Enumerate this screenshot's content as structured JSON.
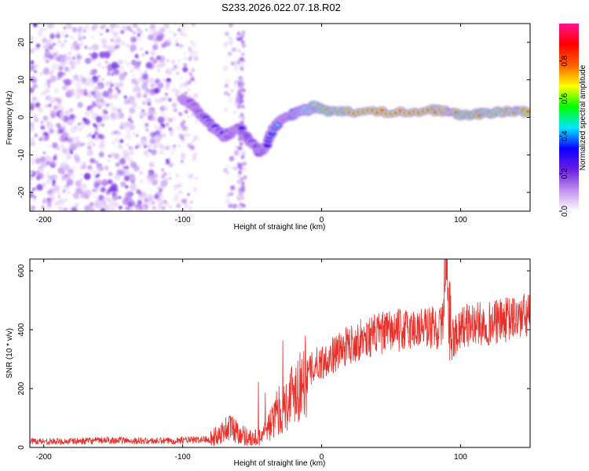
{
  "figure": {
    "title": "S233.2026.022.07.18.R02"
  },
  "chart_data": [
    {
      "type": "heatmap",
      "name": "spectrogram",
      "xlabel": "Height of straight line (km)",
      "ylabel": "Frequency (Hz)",
      "xlim": [
        -210,
        150
      ],
      "ylim": [
        -25,
        25
      ],
      "xticks": [
        -200,
        -100,
        0,
        100
      ],
      "yticks": [
        -20,
        -10,
        0,
        10,
        20
      ],
      "colorbar": {
        "label": "Normalized spectral amplitude",
        "range": [
          0,
          1
        ],
        "ticks": [
          0.0,
          0.2,
          0.4,
          0.6,
          0.8
        ],
        "tick_labels": [
          "0.0",
          "0.2",
          "0.4",
          "0.6",
          "0.8"
        ],
        "colors": [
          "#ffffff",
          "#c090f0",
          "#6a1de0",
          "#0b00ff",
          "#00e6ff",
          "#00ff00",
          "#ffff00",
          "#ff6000",
          "#ff0000",
          "#ff1090"
        ]
      },
      "ridge": {
        "x": [
          -100,
          -95,
          -90,
          -85,
          -80,
          -75,
          -70,
          -65,
          -60,
          -55,
          -50,
          -45,
          -40,
          -35,
          -30,
          -25,
          -20,
          -15,
          -10,
          -5,
          0,
          10,
          20,
          40,
          60,
          80,
          90,
          100,
          110,
          120,
          130,
          140,
          150
        ],
        "y": [
          5,
          4,
          2,
          0,
          -2,
          -3.5,
          -5,
          -4,
          -2,
          -5,
          -7,
          -9,
          -8,
          -3,
          -1,
          0,
          1,
          2,
          2,
          3,
          2,
          1.5,
          1.5,
          1.5,
          1.5,
          2,
          1.5,
          0.5,
          1,
          1,
          1.5,
          1.5,
          1.5
        ],
        "amplitude": [
          0.15,
          0.2,
          0.22,
          0.3,
          0.35,
          0.35,
          0.35,
          0.3,
          0.3,
          0.3,
          0.3,
          0.3,
          0.32,
          0.4,
          0.45,
          0.5,
          0.55,
          0.6,
          0.65,
          0.7,
          0.75,
          0.85,
          0.88,
          0.9,
          0.9,
          0.88,
          0.9,
          0.85,
          0.85,
          0.85,
          0.88,
          0.88,
          0.88
        ]
      }
    },
    {
      "type": "line",
      "name": "snr",
      "xlabel": "Height of straight line (km)",
      "ylabel": "SNR (10 * v/v)",
      "xlim": [
        -210,
        150
      ],
      "ylim": [
        0,
        640
      ],
      "xticks": [
        -200,
        -100,
        0,
        100
      ],
      "yticks": [
        0,
        200,
        400,
        600
      ],
      "color": "#e8302a",
      "series": [
        {
          "name": "SNR",
          "x": [
            -210,
            -190,
            -170,
            -150,
            -130,
            -110,
            -100,
            -90,
            -80,
            -75,
            -70,
            -65,
            -60,
            -55,
            -50,
            -45,
            -40,
            -35,
            -30,
            -25,
            -20,
            -15,
            -10,
            -5,
            0,
            10,
            20,
            30,
            40,
            50,
            60,
            70,
            80,
            85,
            88,
            90,
            92,
            95,
            100,
            110,
            120,
            130,
            140,
            150
          ],
          "y": [
            22,
            20,
            22,
            25,
            22,
            22,
            25,
            25,
            30,
            40,
            60,
            70,
            50,
            40,
            30,
            35,
            60,
            90,
            120,
            150,
            200,
            220,
            250,
            280,
            290,
            320,
            350,
            370,
            385,
            395,
            400,
            405,
            410,
            400,
            450,
            640,
            330,
            380,
            410,
            420,
            420,
            430,
            440,
            450
          ]
        }
      ]
    }
  ]
}
